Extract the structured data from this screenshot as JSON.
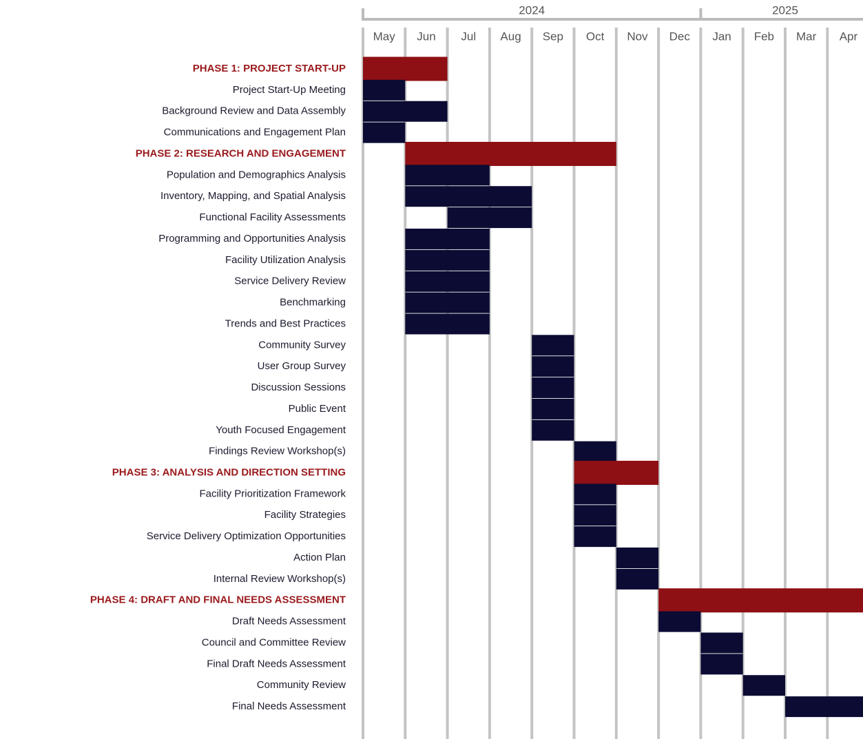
{
  "chart_data": {
    "type": "gantt",
    "years": [
      {
        "label": "2024",
        "start": 0,
        "end": 8
      },
      {
        "label": "2025",
        "start": 8,
        "end": 12
      }
    ],
    "categories": [
      "May",
      "Jun",
      "Jul",
      "Aug",
      "Sep",
      "Oct",
      "Nov",
      "Dec",
      "Jan",
      "Feb",
      "Mar",
      "Apr"
    ],
    "xlim": [
      0,
      12
    ],
    "phase_color": "#8e1014",
    "task_color": "#0b0b33",
    "tasks": [
      {
        "name": "PHASE 1: PROJECT START-UP",
        "phase": true,
        "start": 0,
        "end": 2
      },
      {
        "name": "Project Start-Up Meeting",
        "phase": false,
        "start": 0,
        "end": 1
      },
      {
        "name": "Background Review and Data Assembly",
        "phase": false,
        "start": 0,
        "end": 2
      },
      {
        "name": "Communications and Engagement Plan",
        "phase": false,
        "start": 0,
        "end": 1
      },
      {
        "name": "PHASE 2: RESEARCH AND ENGAGEMENT",
        "phase": true,
        "start": 1,
        "end": 6
      },
      {
        "name": "Population and Demographics Analysis",
        "phase": false,
        "start": 1,
        "end": 3
      },
      {
        "name": "Inventory, Mapping, and Spatial Analysis",
        "phase": false,
        "start": 1,
        "end": 4
      },
      {
        "name": "Functional Facility Assessments",
        "phase": false,
        "start": 2,
        "end": 4
      },
      {
        "name": "Programming and Opportunities Analysis",
        "phase": false,
        "start": 1,
        "end": 3
      },
      {
        "name": "Facility Utilization Analysis",
        "phase": false,
        "start": 1,
        "end": 3
      },
      {
        "name": "Service Delivery Review",
        "phase": false,
        "start": 1,
        "end": 3
      },
      {
        "name": "Benchmarking",
        "phase": false,
        "start": 1,
        "end": 3
      },
      {
        "name": "Trends and Best Practices",
        "phase": false,
        "start": 1,
        "end": 3
      },
      {
        "name": "Community Survey",
        "phase": false,
        "start": 4,
        "end": 5
      },
      {
        "name": "User Group Survey",
        "phase": false,
        "start": 4,
        "end": 5
      },
      {
        "name": "Discussion Sessions",
        "phase": false,
        "start": 4,
        "end": 5
      },
      {
        "name": "Public Event",
        "phase": false,
        "start": 4,
        "end": 5
      },
      {
        "name": "Youth Focused Engagement",
        "phase": false,
        "start": 4,
        "end": 5
      },
      {
        "name": "Findings Review Workshop(s)",
        "phase": false,
        "start": 5,
        "end": 6
      },
      {
        "name": "PHASE 3: ANALYSIS AND DIRECTION SETTING",
        "phase": true,
        "start": 5,
        "end": 7
      },
      {
        "name": "Facility Prioritization Framework",
        "phase": false,
        "start": 5,
        "end": 6
      },
      {
        "name": "Facility Strategies",
        "phase": false,
        "start": 5,
        "end": 6
      },
      {
        "name": "Service Delivery Optimization Opportunities",
        "phase": false,
        "start": 5,
        "end": 6
      },
      {
        "name": "Action Plan",
        "phase": false,
        "start": 6,
        "end": 7
      },
      {
        "name": "Internal Review Workshop(s)",
        "phase": false,
        "start": 6,
        "end": 7
      },
      {
        "name": "PHASE 4: DRAFT AND FINAL NEEDS ASSESSMENT",
        "phase": true,
        "start": 7,
        "end": 12
      },
      {
        "name": "Draft Needs Assessment",
        "phase": false,
        "start": 7,
        "end": 8
      },
      {
        "name": "Council and Committee Review",
        "phase": false,
        "start": 8,
        "end": 9
      },
      {
        "name": "Final Draft Needs Assessment",
        "phase": false,
        "start": 8,
        "end": 9
      },
      {
        "name": "Community Review",
        "phase": false,
        "start": 9,
        "end": 10
      },
      {
        "name": "Final Needs Assessment",
        "phase": false,
        "start": 10,
        "end": 12
      }
    ]
  }
}
